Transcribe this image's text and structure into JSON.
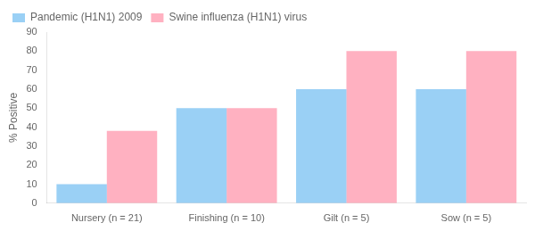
{
  "chart_data": {
    "type": "bar",
    "categories": [
      "Nursery (n = 21)",
      "Finishing (n = 10)",
      "Gilt (n = 5)",
      "Sow (n = 5)"
    ],
    "series": [
      {
        "name": "Pandemic (H1N1) 2009",
        "values": [
          10,
          50,
          60,
          60
        ]
      },
      {
        "name": "Swine influenza (H1N1) virus",
        "values": [
          38,
          50,
          80,
          80
        ]
      }
    ],
    "ylabel": "% Positive",
    "ylim": [
      0,
      90
    ],
    "yticks": [
      0,
      10,
      20,
      30,
      40,
      50,
      60,
      70,
      80,
      90
    ],
    "grid": false,
    "legend": "upper left"
  }
}
